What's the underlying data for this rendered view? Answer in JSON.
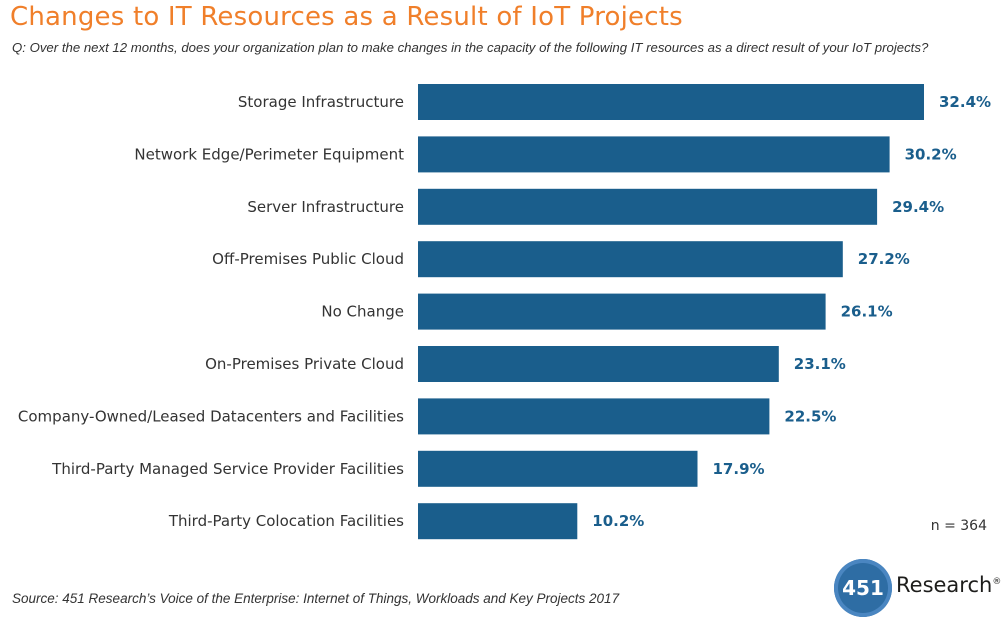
{
  "title": "Changes to IT Resources as a Result of IoT Projects",
  "subtitle": "Q: Over the next 12 months, does your organization plan to make changes in the capacity of the following IT resources as a direct result of your IoT projects?",
  "sample_size": "n = 364",
  "source": "Source: 451 Research’s Voice of the Enterprise: Internet of Things, Workloads and Key Projects 2017",
  "logo": {
    "number": "451",
    "word": "Research",
    "trademark": "®"
  },
  "colors": {
    "title": "#f07f2a",
    "bar": "#1a5e8c",
    "value_label": "#1a5e8c"
  },
  "chart_data": {
    "type": "bar",
    "orientation": "horizontal",
    "categories": [
      "Storage Infrastructure",
      "Network Edge/Perimeter Equipment",
      "Server Infrastructure",
      "Off-Premises Public Cloud",
      "No Change",
      "On-Premises Private Cloud",
      "Company-Owned/Leased Datacenters and Facilities",
      "Third-Party Managed Service Provider Facilities",
      "Third-Party Colocation Facilities"
    ],
    "values": [
      32.4,
      30.2,
      29.4,
      27.2,
      26.1,
      23.1,
      22.5,
      17.9,
      10.2
    ],
    "value_labels": [
      "32.4%",
      "30.2%",
      "29.4%",
      "27.2%",
      "26.1%",
      "23.1%",
      "22.5%",
      "17.9%",
      "10.2%"
    ],
    "unit": "%",
    "xlim": [
      0,
      32.4
    ],
    "grid": false,
    "legend": "none"
  }
}
